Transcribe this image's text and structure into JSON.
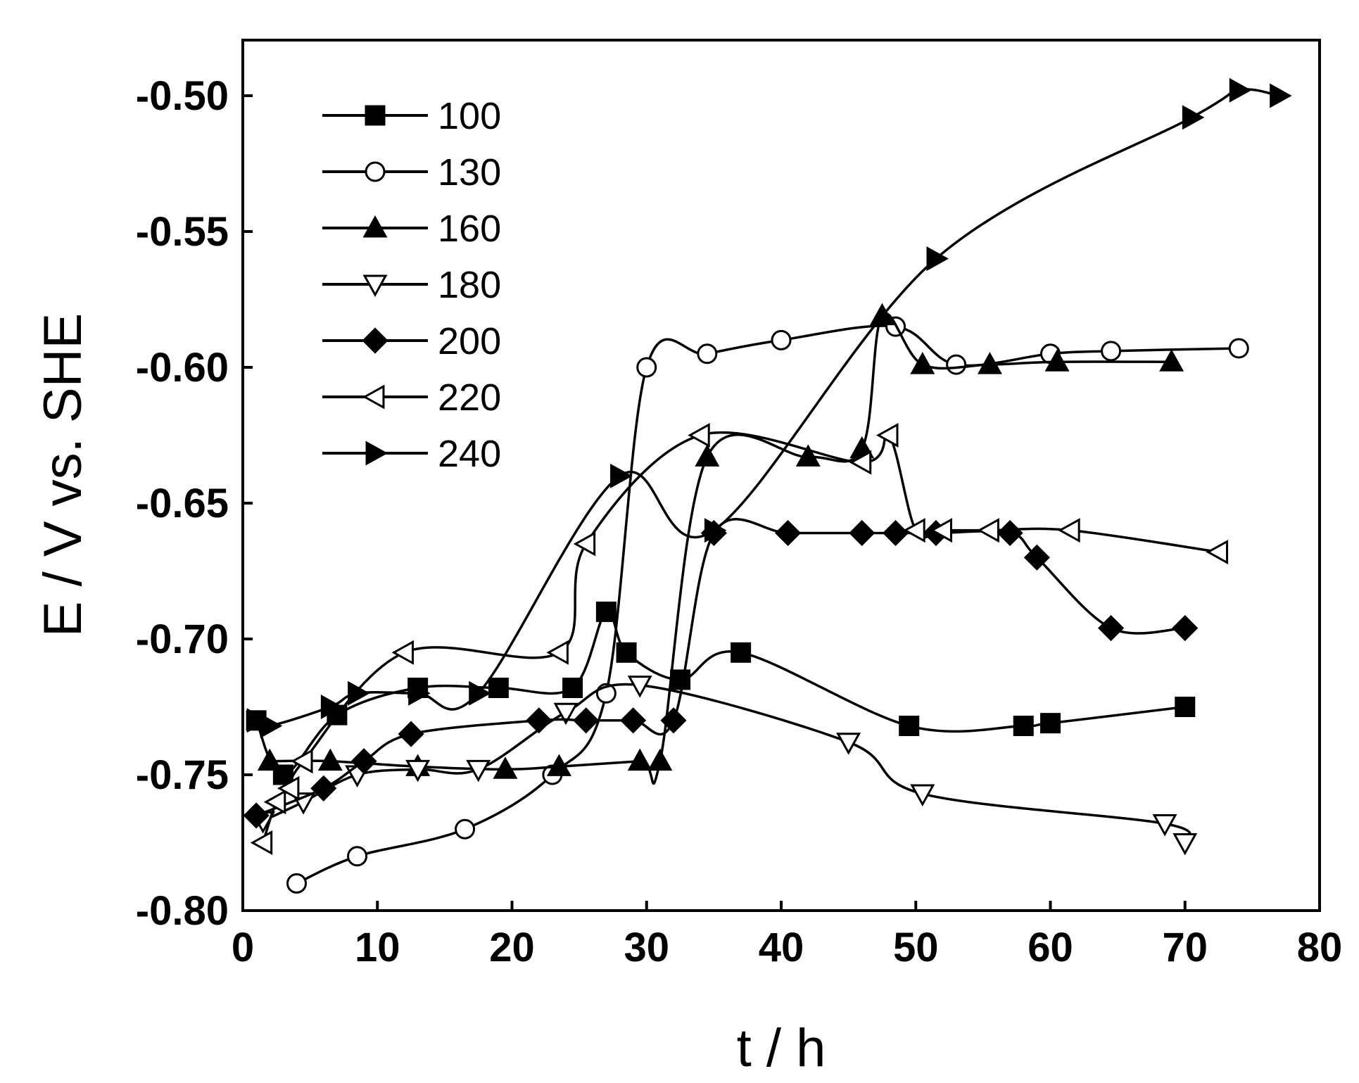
{
  "chart_data": {
    "type": "line",
    "title": "",
    "xlabel": "t / h",
    "ylabel": "E / V vs. SHE",
    "xlim": [
      0,
      80
    ],
    "ylim": [
      -0.8,
      -0.48
    ],
    "xticks": [
      0,
      10,
      20,
      30,
      40,
      50,
      60,
      70,
      80
    ],
    "xtick_labels": [
      "0",
      "10",
      "20",
      "30",
      "40",
      "50",
      "60",
      "70",
      "80"
    ],
    "yticks": [
      -0.5,
      -0.55,
      -0.6,
      -0.65,
      -0.7,
      -0.75,
      -0.8
    ],
    "ytick_labels": [
      "-0.50",
      "-0.55",
      "-0.60",
      "-0.65",
      "-0.70",
      "-0.75",
      "-0.80"
    ],
    "grid": false,
    "legend_position": "top-left",
    "series": [
      {
        "name": "100",
        "marker": "square-filled",
        "x": [
          1,
          3,
          7,
          13,
          19,
          24.5,
          27,
          28.5,
          32.5,
          37,
          49.5,
          58,
          60,
          70
        ],
        "y": [
          -0.73,
          -0.75,
          -0.728,
          -0.718,
          -0.718,
          -0.718,
          -0.69,
          -0.705,
          -0.715,
          -0.705,
          -0.732,
          -0.732,
          -0.731,
          -0.725
        ]
      },
      {
        "name": "130",
        "marker": "circle-open",
        "x": [
          4,
          8.5,
          16.5,
          23,
          27,
          30,
          34.5,
          40,
          48.5,
          53,
          60,
          64.5,
          74
        ],
        "y": [
          -0.79,
          -0.78,
          -0.77,
          -0.75,
          -0.72,
          -0.6,
          -0.595,
          -0.59,
          -0.585,
          -0.599,
          -0.595,
          -0.594,
          -0.593
        ]
      },
      {
        "name": "160",
        "marker": "triangle-up-filled",
        "x": [
          2,
          6.5,
          13,
          19.5,
          23.5,
          29.5,
          31,
          34.5,
          42,
          46,
          47.5,
          50.5,
          55.5,
          60.5,
          69
        ],
        "y": [
          -0.745,
          -0.745,
          -0.747,
          -0.748,
          -0.747,
          -0.745,
          -0.745,
          -0.633,
          -0.633,
          -0.63,
          -0.581,
          -0.599,
          -0.599,
          -0.598,
          -0.598
        ]
      },
      {
        "name": "180",
        "marker": "triangle-down-open",
        "x": [
          1.5,
          4.5,
          8.5,
          13,
          17.5,
          24,
          29.5,
          45,
          50.5,
          68.5,
          70
        ],
        "y": [
          -0.767,
          -0.76,
          -0.75,
          -0.748,
          -0.748,
          -0.727,
          -0.717,
          -0.738,
          -0.757,
          -0.768,
          -0.775
        ]
      },
      {
        "name": "200",
        "marker": "diamond-filled",
        "x": [
          1,
          6,
          9,
          12.5,
          22,
          25.5,
          29,
          32,
          35,
          40.5,
          46,
          48.5,
          51.5,
          57,
          59,
          64.5,
          70
        ],
        "y": [
          -0.765,
          -0.755,
          -0.745,
          -0.735,
          -0.73,
          -0.73,
          -0.73,
          -0.73,
          -0.661,
          -0.661,
          -0.661,
          -0.661,
          -0.661,
          -0.661,
          -0.67,
          -0.696,
          -0.696
        ]
      },
      {
        "name": "220",
        "marker": "triangle-left-open",
        "x": [
          1.5,
          2.5,
          3.5,
          4.5,
          12,
          23.5,
          25.5,
          34,
          46,
          48,
          50,
          52,
          55.5,
          61.5,
          72.5
        ],
        "y": [
          -0.775,
          -0.76,
          -0.755,
          -0.745,
          -0.705,
          -0.705,
          -0.665,
          -0.625,
          -0.635,
          -0.625,
          -0.66,
          -0.66,
          -0.66,
          -0.66,
          -0.668
        ]
      },
      {
        "name": "240",
        "marker": "triangle-right-filled",
        "x": [
          1,
          2,
          6.5,
          8.5,
          13,
          17.5,
          28,
          35,
          51.5,
          70.5,
          74,
          77
        ],
        "y": [
          -0.73,
          -0.732,
          -0.725,
          -0.72,
          -0.72,
          -0.72,
          -0.64,
          -0.66,
          -0.56,
          -0.508,
          -0.498,
          -0.5
        ]
      }
    ]
  }
}
